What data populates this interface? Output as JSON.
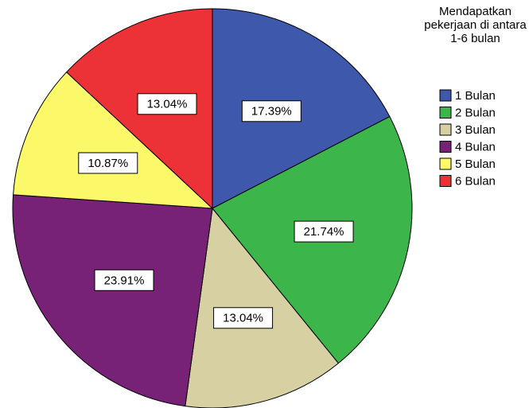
{
  "chart_data": {
    "type": "pie",
    "legend_title": "Mendapatkan pekerjaan di antara 1-6 bulan",
    "categories": [
      "1 Bulan",
      "2 Bulan",
      "3 Bulan",
      "4 Bulan",
      "5 Bulan",
      "6 Bulan"
    ],
    "values": [
      17.39,
      21.74,
      13.04,
      23.91,
      10.87,
      13.04
    ],
    "value_labels": [
      "17.39%",
      "21.74%",
      "13.04%",
      "23.91%",
      "10.87%",
      "13.04%"
    ],
    "colors": [
      "#3e58ac",
      "#3cb54a",
      "#d6d0a2",
      "#772277",
      "#fbf96a",
      "#ec3237"
    ]
  }
}
